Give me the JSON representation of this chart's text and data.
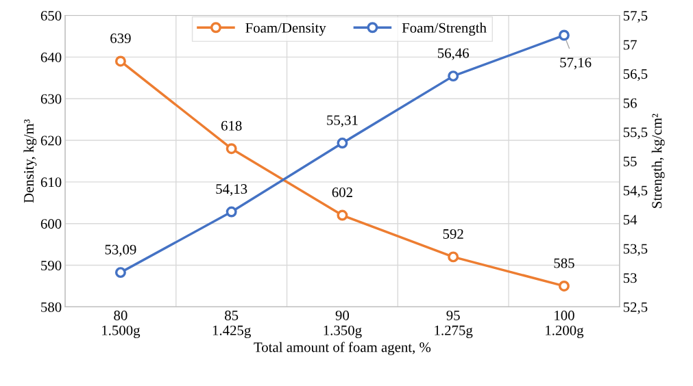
{
  "chart_data": {
    "type": "line",
    "xlabel": "Total amount of foam agent, %",
    "ylabel": "Density, kg/m³",
    "y2label": "Strength, kg/cm²",
    "categories": [
      "80\n1.500g",
      "85\n1.425g",
      "90\n1.350g",
      "95\n1.275g",
      "100\n1.200g"
    ],
    "series": [
      {
        "name": "Foam/Density",
        "color": "#ed7d31",
        "values": [
          639,
          618,
          602,
          592,
          585
        ],
        "value_labels": [
          "639",
          "618",
          "602",
          "592",
          "585"
        ]
      },
      {
        "name": "Foam/Strength",
        "color": "#4472c4",
        "axis": "y2",
        "values": [
          53.09,
          54.13,
          55.31,
          56.46,
          57.16
        ],
        "value_labels": [
          "53,09",
          "54,13",
          "55,31",
          "56,46",
          "57,16"
        ]
      }
    ],
    "ylim": [
      580,
      650
    ],
    "yticks": [
      580,
      590,
      600,
      610,
      620,
      630,
      640,
      650
    ],
    "y2lim": [
      52.5,
      57.5
    ],
    "y2ticks": [
      {
        "value": 52.5,
        "label": "52,5"
      },
      53,
      {
        "value": 53.5,
        "label": "53,5"
      },
      54,
      {
        "value": 54.5,
        "label": "54,5"
      },
      55,
      {
        "value": 55.5,
        "label": "55,5"
      },
      56,
      {
        "value": 56.5,
        "label": "56,5"
      },
      57,
      {
        "value": 57.5,
        "label": "57,5"
      }
    ],
    "grid": true,
    "legend": "top",
    "marker": "circle",
    "line_style": "solid"
  }
}
